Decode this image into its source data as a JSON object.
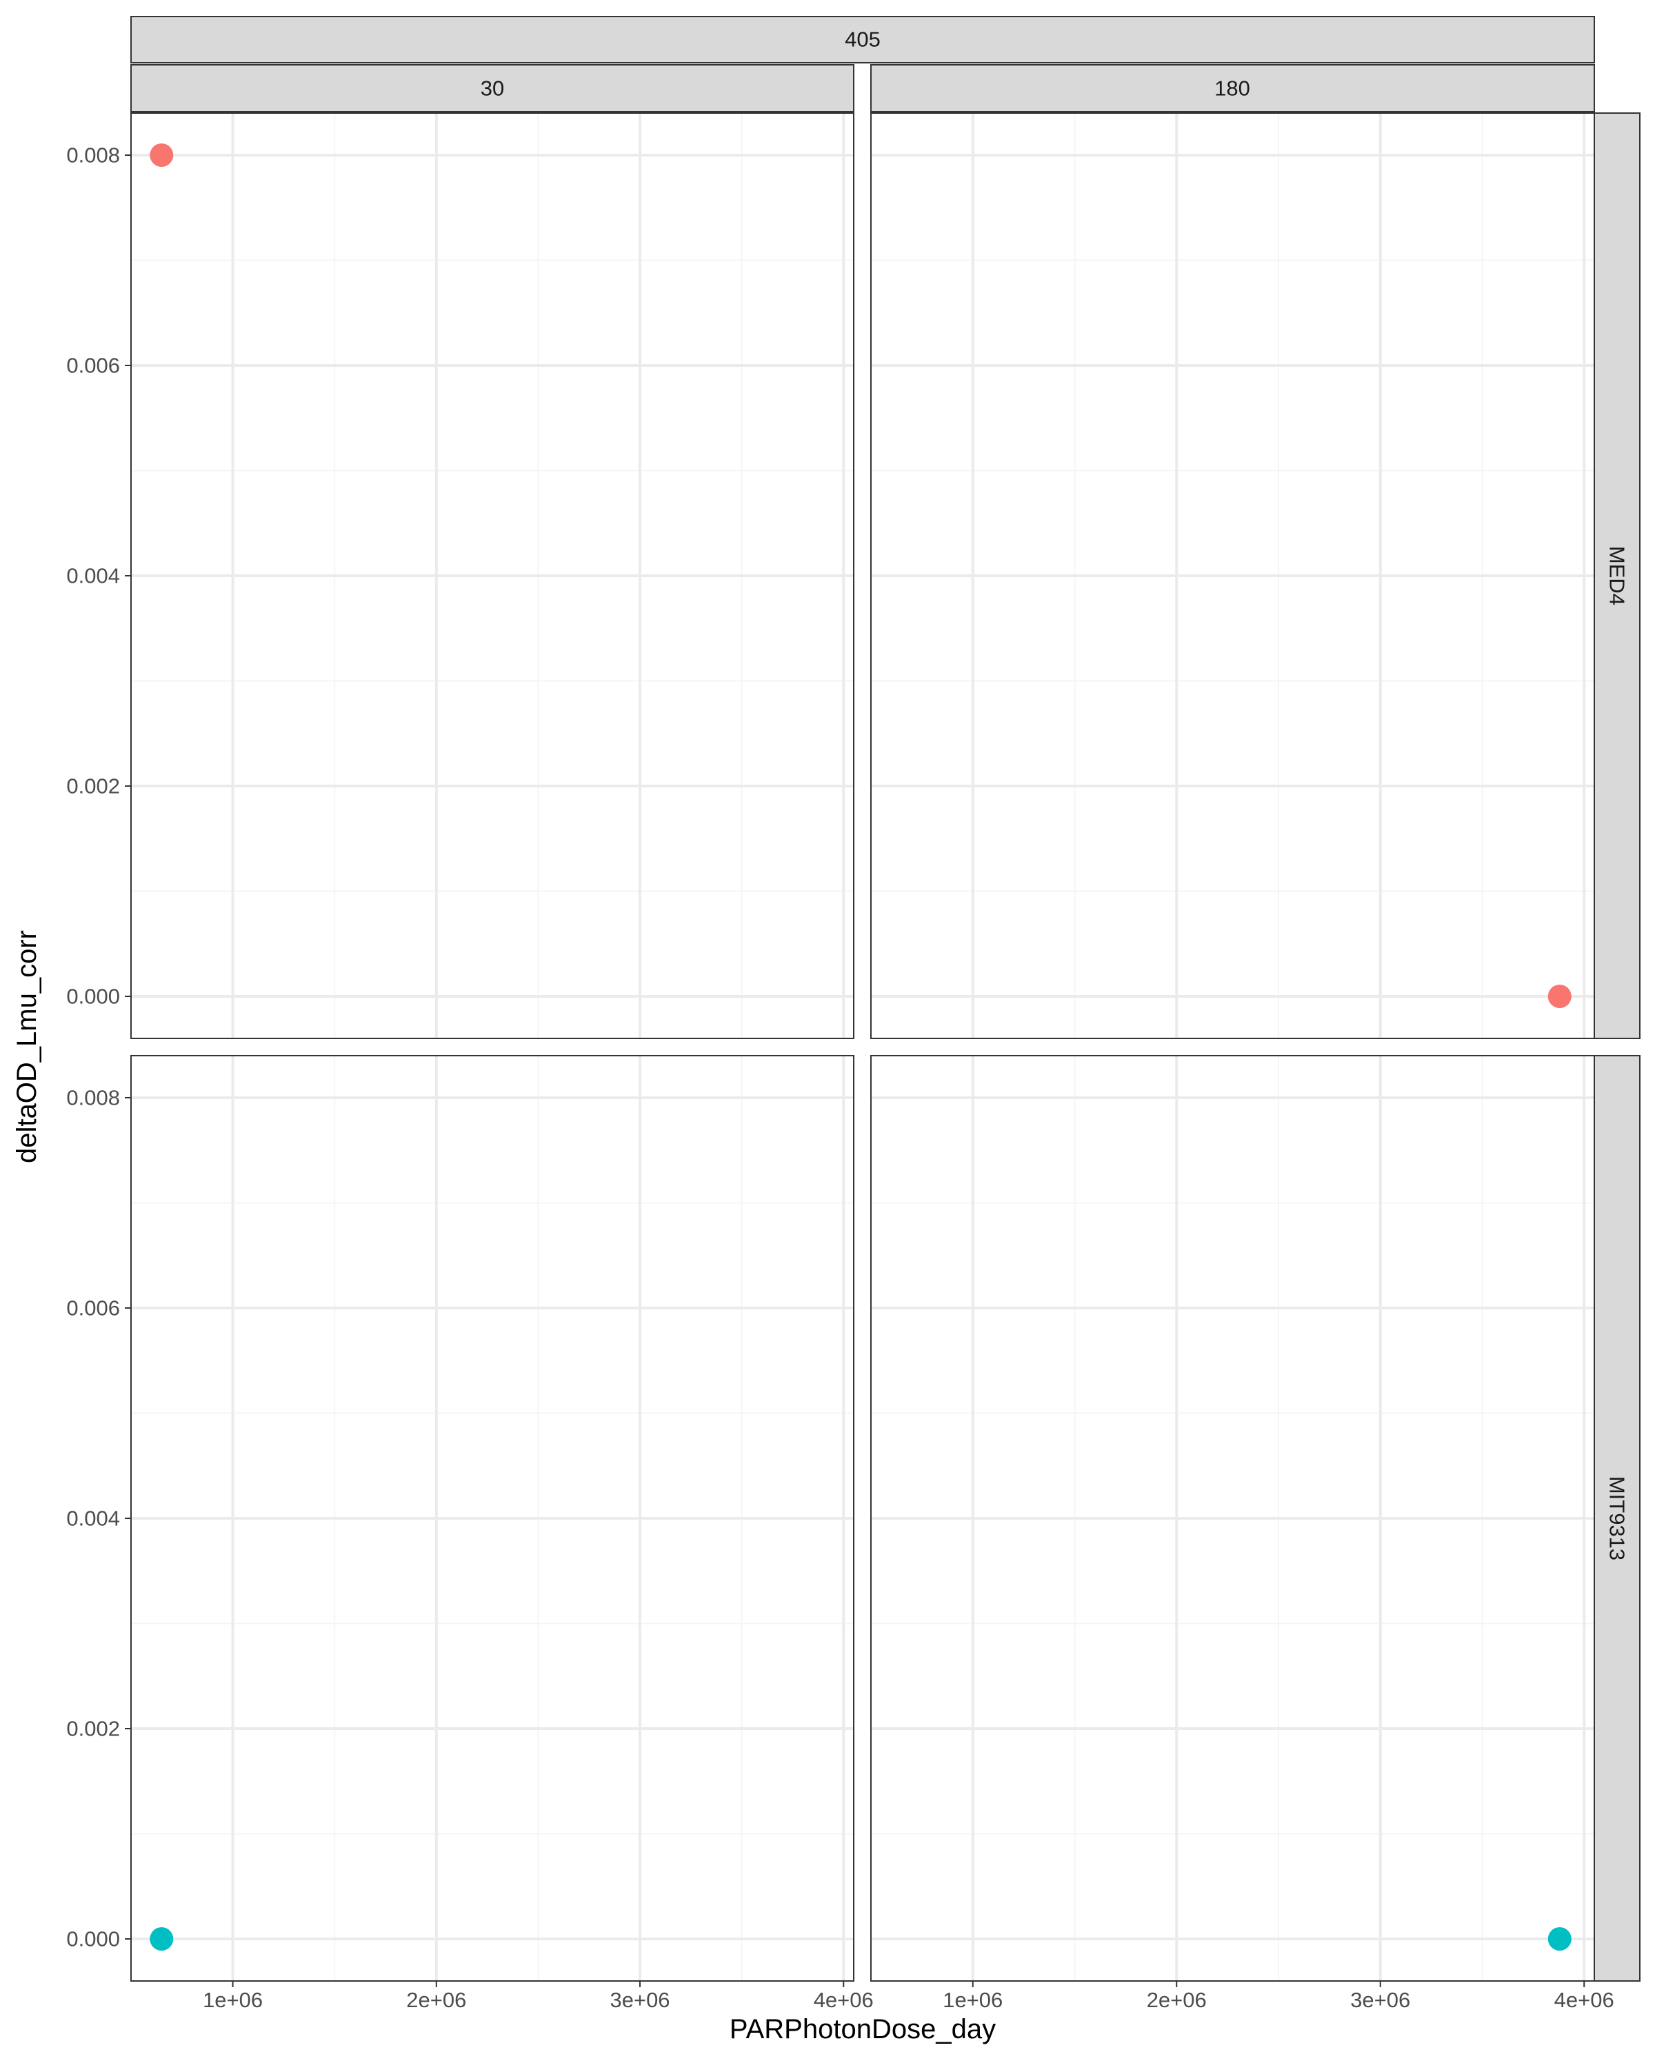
{
  "chart_data": {
    "type": "scatter",
    "title": "",
    "xlabel": "PARPhotonDose_day",
    "ylabel": "deltaOD_Lmu_corr",
    "xlim": [
      500000,
      4050000
    ],
    "ylim": [
      -0.0004,
      0.0084
    ],
    "x_ticks": [
      1000000,
      2000000,
      3000000,
      4000000
    ],
    "x_tick_labels": [
      "1e+06",
      "2e+06",
      "3e+06",
      "4e+06"
    ],
    "y_ticks": [
      0.0,
      0.002,
      0.004,
      0.006,
      0.008
    ],
    "y_tick_labels": [
      "0.000",
      "0.002",
      "0.004",
      "0.006",
      "0.008"
    ],
    "grid": true,
    "legend": "none",
    "facet_top_strip": "405",
    "facet_columns": [
      "30",
      "180"
    ],
    "facet_rows": [
      "MED4",
      "MIT9313"
    ],
    "panels": [
      {
        "row": "MED4",
        "column": "30",
        "points": [
          {
            "x": 650000,
            "y": 0.008,
            "color": "#F8766D"
          }
        ]
      },
      {
        "row": "MED4",
        "column": "180",
        "points": [
          {
            "x": 3880000,
            "y": 0.0,
            "color": "#F8766D"
          }
        ]
      },
      {
        "row": "MIT9313",
        "column": "30",
        "points": [
          {
            "x": 650000,
            "y": 0.0,
            "color": "#00BFC4"
          }
        ]
      },
      {
        "row": "MIT9313",
        "column": "180",
        "points": [
          {
            "x": 3880000,
            "y": 0.0,
            "color": "#00BFC4"
          }
        ]
      }
    ],
    "colors": {
      "MED4": "#F8766D",
      "MIT9313": "#00BFC4",
      "strip_fill": "#D9D9D9",
      "grid_major": "#EBEBEB",
      "grid_minor": "#F5F5F5",
      "panel_border": "#333333"
    }
  }
}
